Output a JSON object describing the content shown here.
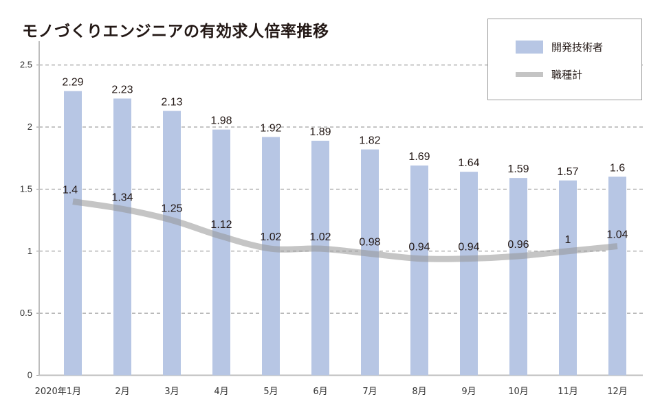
{
  "chart_data": {
    "type": "bar",
    "title": "モノづくりエンジニアの有効求人倍率推移",
    "categories": [
      "2020年1月",
      "2月",
      "3月",
      "4月",
      "5月",
      "6月",
      "7月",
      "8月",
      "9月",
      "10月",
      "11月",
      "12月"
    ],
    "series": [
      {
        "name": "開発技術者",
        "kind": "bar",
        "color": "#b7c6e4",
        "values": [
          2.29,
          2.23,
          2.13,
          1.98,
          1.92,
          1.89,
          1.82,
          1.69,
          1.64,
          1.59,
          1.57,
          1.6
        ],
        "labels": [
          "2.29",
          "2.23",
          "2.13",
          "1.98",
          "1.92",
          "1.89",
          "1.82",
          "1.69",
          "1.64",
          "1.59",
          "1.57",
          "1.6"
        ]
      },
      {
        "name": "職種計",
        "kind": "line",
        "color": "#c4c4c4",
        "values": [
          1.4,
          1.34,
          1.25,
          1.12,
          1.02,
          1.02,
          0.98,
          0.94,
          0.94,
          0.96,
          1,
          1.04
        ],
        "labels": [
          "1.4",
          "1.34",
          "1.25",
          "1.12",
          "1.02",
          "1.02",
          "0.98",
          "0.94",
          "0.94",
          "0.96",
          "1",
          "1.04"
        ]
      }
    ],
    "ylim": [
      0,
      2.5
    ],
    "yticks": [
      "0",
      "0.5",
      "1",
      "1.5",
      "2",
      "2.5"
    ],
    "grid": true,
    "legend": "top-right",
    "xlabel": "",
    "ylabel": ""
  }
}
